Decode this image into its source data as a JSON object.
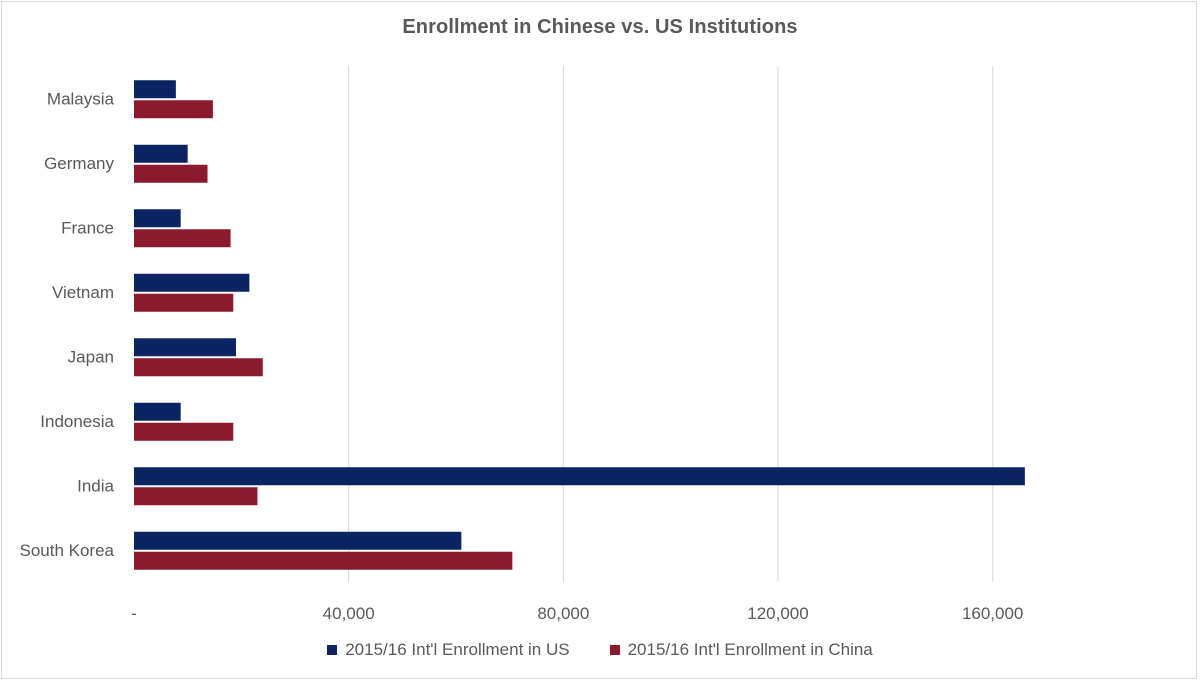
{
  "chart_data": {
    "type": "bar",
    "orientation": "horizontal",
    "title": "Enrollment in Chinese vs. US Institutions",
    "categories": [
      "South Korea",
      "India",
      "Indonesia",
      "Japan",
      "Vietnam",
      "France",
      "Germany",
      "Malaysia"
    ],
    "series": [
      {
        "name": "2015/16 Int'l Enrollment in US",
        "color": "#0c2461",
        "values": [
          61000,
          166000,
          8700,
          19000,
          21500,
          8700,
          10000,
          7800
        ]
      },
      {
        "name": "2015/16 Int'l Enrollment in China",
        "color": "#8b1a2e",
        "values": [
          70500,
          23000,
          18500,
          24000,
          18500,
          18000,
          13700,
          14700
        ]
      }
    ],
    "xlim": [
      0,
      180000
    ],
    "x_ticks": [
      "-",
      "40,000",
      "80,000",
      "120,000",
      "160,000"
    ],
    "x_tick_values": [
      0,
      40000,
      80000,
      120000,
      160000
    ],
    "grid": true,
    "legend_position": "bottom"
  }
}
